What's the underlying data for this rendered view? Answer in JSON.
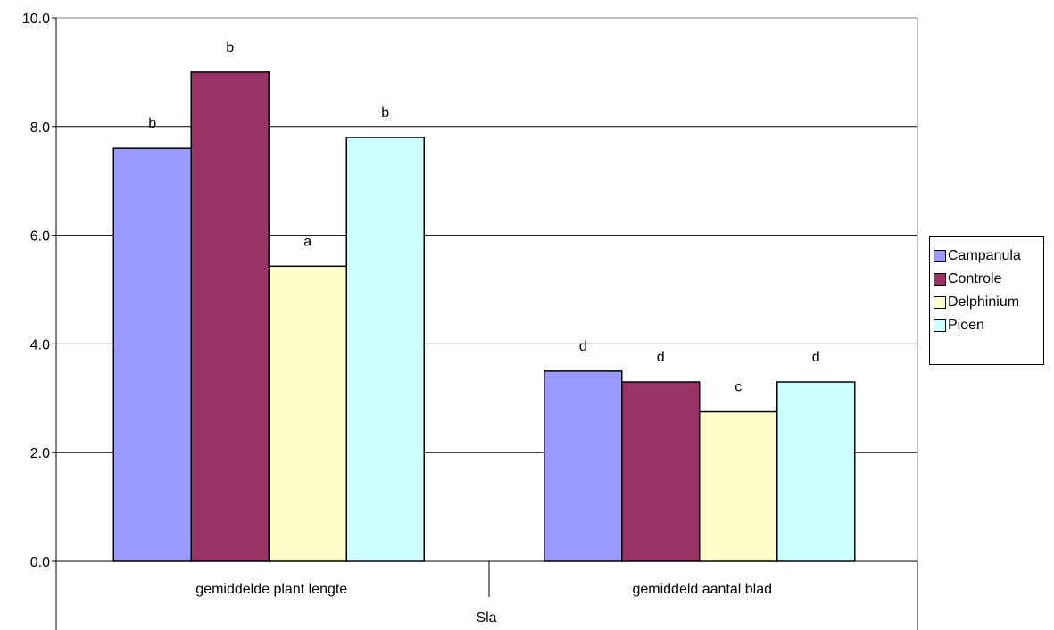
{
  "chart_data": {
    "type": "bar",
    "x_group_label": "Sla",
    "categories": [
      "gemiddelde plant lengte",
      "gemiddeld aantal blad"
    ],
    "ylim": [
      0,
      10
    ],
    "yticks": [
      "0.0",
      "2.0",
      "4.0",
      "6.0",
      "8.0",
      "10.0"
    ],
    "grid": true,
    "legend_position": "right",
    "series": [
      {
        "name": "Campanula",
        "color": "#9999FF",
        "values": [
          7.6,
          3.5
        ],
        "labels": [
          "b",
          "d"
        ]
      },
      {
        "name": "Controle",
        "color": "#993366",
        "values": [
          9.0,
          3.3
        ],
        "labels": [
          "b",
          "d"
        ]
      },
      {
        "name": "Delphinium",
        "color": "#FFFFCC",
        "values": [
          5.43,
          2.75
        ],
        "labels": [
          "a",
          "c"
        ]
      },
      {
        "name": "Pioen",
        "color": "#CCFFFF",
        "values": [
          7.8,
          3.3
        ],
        "labels": [
          "b",
          "d"
        ]
      }
    ]
  }
}
